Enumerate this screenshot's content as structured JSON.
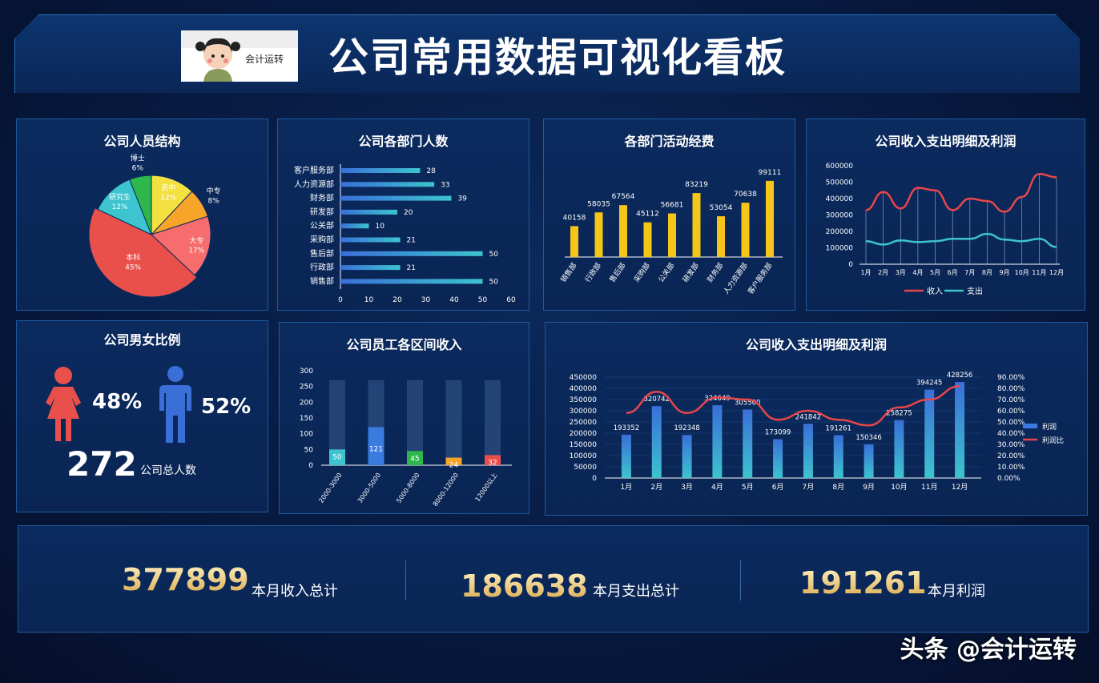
{
  "header": {
    "title": "公司常用数据可视化看板",
    "logo_text": "会计运转"
  },
  "panels": {
    "structure": {
      "title": "公司人员结构",
      "slices": [
        {
          "label": "高中",
          "pct": "12%",
          "value": 12,
          "color": "#f3e142"
        },
        {
          "label": "中专",
          "pct": "8%",
          "value": 8,
          "color": "#f7a52a"
        },
        {
          "label": "大专",
          "pct": "17%",
          "value": 17,
          "color": "#f76d6d"
        },
        {
          "label": "本科",
          "pct": "45%",
          "value": 45,
          "color": "#e9504c"
        },
        {
          "label": "研究生",
          "pct": "12%",
          "value": 12,
          "color": "#3dc4cf"
        },
        {
          "label": "博士",
          "pct": "6%",
          "value": 6,
          "color": "#2eb84b"
        }
      ]
    },
    "dept": {
      "title": "公司各部门人数",
      "rows": [
        {
          "label": "客户服务部",
          "value": 28
        },
        {
          "label": "人力资源部",
          "value": 33
        },
        {
          "label": "财务部",
          "value": 39
        },
        {
          "label": "研发部",
          "value": 20
        },
        {
          "label": "公关部",
          "value": 10
        },
        {
          "label": "采购部",
          "value": 21
        },
        {
          "label": "售后部",
          "value": 50
        },
        {
          "label": "行政部",
          "value": 21
        },
        {
          "label": "销售部",
          "value": 50
        }
      ],
      "ticks": [
        "0",
        "10",
        "20",
        "30",
        "40",
        "50",
        "60"
      ]
    },
    "funds": {
      "title": "各部门活动经费",
      "categories": [
        "销售部",
        "行政部",
        "售后部",
        "采购部",
        "公关部",
        "研发部",
        "财务部",
        "人力资源部",
        "客户服务部"
      ],
      "values": [
        40158,
        58035,
        67564,
        45112,
        56681,
        83219,
        53054,
        70638,
        99111
      ]
    },
    "income_small": {
      "title": "公司收入支出明细及利润",
      "yticks": [
        "600000",
        "500000",
        "400000",
        "300000",
        "200000",
        "100000",
        "0"
      ],
      "months": [
        "1月",
        "2月",
        "3月",
        "4月",
        "5月",
        "6月",
        "7月",
        "8月",
        "9月",
        "10月",
        "11月",
        "12月"
      ],
      "income": [
        330000,
        440000,
        340000,
        465000,
        450000,
        330000,
        400000,
        385000,
        320000,
        410000,
        550000,
        530000
      ],
      "expense": [
        140000,
        120000,
        145000,
        135000,
        140000,
        155000,
        155000,
        185000,
        150000,
        140000,
        155000,
        105000
      ],
      "legend_income": "收入",
      "legend_expense": "支出"
    },
    "gender": {
      "title": "公司男女比例",
      "female_pct": "48%",
      "male_pct": "52%",
      "total": "272",
      "total_label": "公司总人数"
    },
    "salary": {
      "title": "公司员工各区间收入",
      "categories": [
        "2000-3000",
        "3000-5000",
        "5000-8000",
        "8000-12000",
        "12000以上"
      ],
      "values": [
        50,
        121,
        45,
        24,
        32
      ],
      "colors": [
        "#3dc4cf",
        "#3a7be0",
        "#2eb84b",
        "#f7a52a",
        "#e9504c"
      ],
      "yticks": [
        "300",
        "250",
        "200",
        "150",
        "100",
        "50",
        "0"
      ]
    },
    "profit": {
      "title": "公司收入支出明细及利润",
      "months": [
        "1月",
        "2月",
        "3月",
        "4月",
        "5月",
        "6月",
        "7月",
        "8月",
        "9月",
        "10月",
        "11月",
        "12月"
      ],
      "values": [
        193352,
        320742,
        192348,
        324649,
        305560,
        173099,
        241842,
        191261,
        150346,
        258275,
        394245,
        428256
      ],
      "labels": [
        "193352",
        "320742",
        "192348",
        "324649",
        "305560",
        "173099",
        "241842",
        "191261",
        "150346",
        "258275",
        "394245",
        "428256"
      ],
      "yticks": [
        "450000",
        "400000",
        "350000",
        "300000",
        "250000",
        "200000",
        "150000",
        "100000",
        "50000",
        "0"
      ],
      "ytick2": [
        "90.00%",
        "80.00%",
        "70.00%",
        "60.00%",
        "50.00%",
        "40.00%",
        "30.00%",
        "20.00%",
        "10.00%",
        "0.00%"
      ],
      "ratio": [
        0.58,
        0.77,
        0.58,
        0.72,
        0.7,
        0.52,
        0.6,
        0.52,
        0.47,
        0.63,
        0.7,
        0.82
      ],
      "legend_profit": "利润",
      "legend_ratio": "利润比"
    }
  },
  "kpis": [
    {
      "value": "377899",
      "label": "本月收入总计"
    },
    {
      "value": "186638",
      "label": "本月支出总计"
    },
    {
      "value": "191261",
      "label": "本月利润"
    }
  ],
  "watermark": "头条 @会计运转"
}
